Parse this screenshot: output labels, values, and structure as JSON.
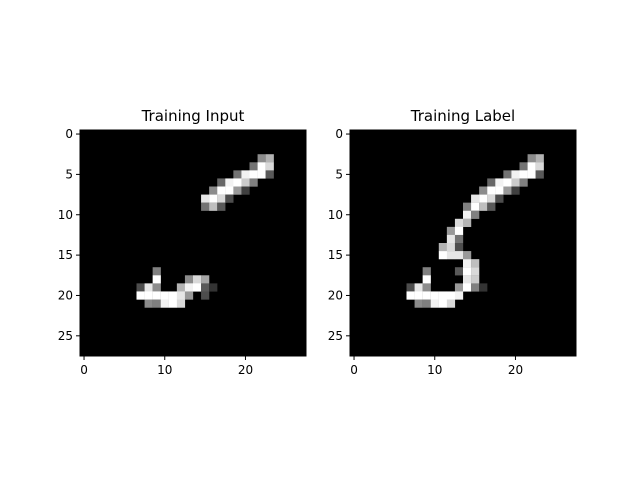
{
  "chart_data": [
    {
      "type": "heatmap",
      "title": "Training Input",
      "xlabel": "",
      "ylabel": "",
      "colormap": "gray",
      "background": "#000000",
      "xlim": [
        -0.5,
        27.5
      ],
      "ylim": [
        27.5,
        -0.5
      ],
      "xticks": [
        0,
        10,
        20
      ],
      "yticks": [
        0,
        5,
        10,
        15,
        20,
        25
      ],
      "grid": false,
      "cells": [
        [
          3,
          22,
          0.55
        ],
        [
          3,
          23,
          0.7
        ],
        [
          4,
          21,
          0.45
        ],
        [
          4,
          22,
          1.0
        ],
        [
          4,
          23,
          0.85
        ],
        [
          5,
          19,
          0.45
        ],
        [
          5,
          20,
          0.95
        ],
        [
          5,
          21,
          1.0
        ],
        [
          5,
          22,
          1.0
        ],
        [
          5,
          23,
          0.35
        ],
        [
          6,
          17,
          0.4
        ],
        [
          6,
          18,
          0.95
        ],
        [
          6,
          19,
          1.0
        ],
        [
          6,
          20,
          0.8
        ],
        [
          6,
          21,
          0.5
        ],
        [
          7,
          16,
          0.55
        ],
        [
          7,
          17,
          1.0
        ],
        [
          7,
          18,
          1.0
        ],
        [
          7,
          19,
          0.6
        ],
        [
          7,
          20,
          0.25
        ],
        [
          8,
          15,
          0.9
        ],
        [
          8,
          16,
          1.0
        ],
        [
          8,
          17,
          0.85
        ],
        [
          8,
          18,
          0.3
        ],
        [
          9,
          15,
          0.45
        ],
        [
          9,
          16,
          0.75
        ],
        [
          9,
          17,
          0.35
        ],
        [
          17,
          9,
          0.5
        ],
        [
          18,
          9,
          1.0
        ],
        [
          18,
          13,
          0.55
        ],
        [
          18,
          14,
          0.85
        ],
        [
          18,
          15,
          0.65
        ],
        [
          19,
          7,
          0.3
        ],
        [
          19,
          8,
          0.9
        ],
        [
          19,
          9,
          0.55
        ],
        [
          19,
          12,
          0.7
        ],
        [
          19,
          13,
          0.95
        ],
        [
          19,
          14,
          1.0
        ],
        [
          19,
          15,
          0.35
        ],
        [
          19,
          16,
          0.2
        ],
        [
          20,
          7,
          1.0
        ],
        [
          20,
          8,
          1.0
        ],
        [
          20,
          9,
          1.0
        ],
        [
          20,
          10,
          1.0
        ],
        [
          20,
          11,
          1.0
        ],
        [
          20,
          12,
          0.9
        ],
        [
          20,
          13,
          0.6
        ],
        [
          20,
          15,
          0.3
        ],
        [
          21,
          8,
          0.55
        ],
        [
          21,
          9,
          0.5
        ],
        [
          21,
          10,
          0.95
        ],
        [
          21,
          11,
          1.0
        ],
        [
          21,
          12,
          0.85
        ]
      ]
    },
    {
      "type": "heatmap",
      "title": "Training Label",
      "xlabel": "",
      "ylabel": "",
      "colormap": "gray",
      "background": "#000000",
      "xlim": [
        -0.5,
        27.5
      ],
      "ylim": [
        27.5,
        -0.5
      ],
      "xticks": [
        0,
        10,
        20
      ],
      "yticks": [
        0,
        5,
        10,
        15,
        20,
        25
      ],
      "grid": false,
      "cells": [
        [
          3,
          22,
          0.55
        ],
        [
          3,
          23,
          0.7
        ],
        [
          4,
          21,
          0.45
        ],
        [
          4,
          22,
          1.0
        ],
        [
          4,
          23,
          0.85
        ],
        [
          5,
          19,
          0.45
        ],
        [
          5,
          20,
          0.95
        ],
        [
          5,
          21,
          1.0
        ],
        [
          5,
          22,
          1.0
        ],
        [
          5,
          23,
          0.35
        ],
        [
          6,
          17,
          0.4
        ],
        [
          6,
          18,
          0.95
        ],
        [
          6,
          19,
          1.0
        ],
        [
          6,
          20,
          0.8
        ],
        [
          6,
          21,
          0.5
        ],
        [
          7,
          16,
          0.55
        ],
        [
          7,
          17,
          1.0
        ],
        [
          7,
          18,
          1.0
        ],
        [
          7,
          19,
          0.6
        ],
        [
          7,
          20,
          0.25
        ],
        [
          8,
          15,
          0.9
        ],
        [
          8,
          16,
          1.0
        ],
        [
          8,
          17,
          0.85
        ],
        [
          8,
          18,
          0.3
        ],
        [
          9,
          14,
          0.5
        ],
        [
          9,
          15,
          1.0
        ],
        [
          9,
          16,
          0.75
        ],
        [
          9,
          17,
          0.35
        ],
        [
          10,
          14,
          0.95
        ],
        [
          10,
          15,
          0.5
        ],
        [
          11,
          13,
          0.85
        ],
        [
          11,
          14,
          0.7
        ],
        [
          12,
          12,
          0.6
        ],
        [
          12,
          13,
          1.0
        ],
        [
          13,
          12,
          0.9
        ],
        [
          13,
          13,
          0.45
        ],
        [
          14,
          11,
          0.7
        ],
        [
          14,
          12,
          0.85
        ],
        [
          14,
          13,
          0.3
        ],
        [
          15,
          11,
          1.0
        ],
        [
          15,
          12,
          0.9
        ],
        [
          15,
          13,
          0.9
        ],
        [
          15,
          14,
          0.6
        ],
        [
          16,
          14,
          0.95
        ],
        [
          16,
          15,
          0.75
        ],
        [
          17,
          9,
          0.5
        ],
        [
          17,
          13,
          0.35
        ],
        [
          17,
          14,
          1.0
        ],
        [
          17,
          15,
          0.85
        ],
        [
          18,
          9,
          1.0
        ],
        [
          18,
          14,
          0.9
        ],
        [
          18,
          15,
          0.8
        ],
        [
          19,
          7,
          0.3
        ],
        [
          19,
          8,
          0.9
        ],
        [
          19,
          9,
          0.55
        ],
        [
          19,
          13,
          0.6
        ],
        [
          19,
          14,
          1.0
        ],
        [
          19,
          15,
          0.5
        ],
        [
          19,
          16,
          0.2
        ],
        [
          20,
          7,
          1.0
        ],
        [
          20,
          8,
          1.0
        ],
        [
          20,
          9,
          1.0
        ],
        [
          20,
          10,
          1.0
        ],
        [
          20,
          11,
          1.0
        ],
        [
          20,
          12,
          1.0
        ],
        [
          20,
          13,
          0.95
        ],
        [
          21,
          8,
          0.55
        ],
        [
          21,
          9,
          0.5
        ],
        [
          21,
          10,
          0.95
        ],
        [
          21,
          11,
          1.0
        ],
        [
          21,
          12,
          0.85
        ]
      ]
    }
  ]
}
